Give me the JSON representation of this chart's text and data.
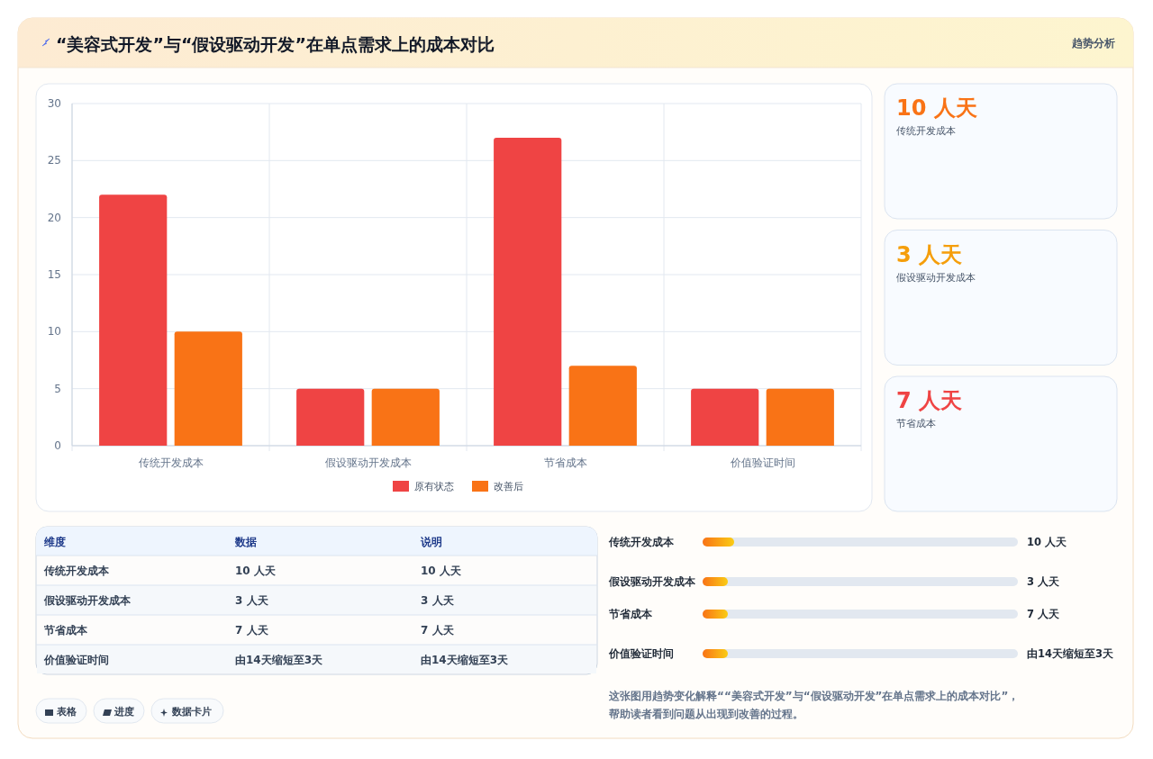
{
  "chart_data": [
    {
      "type": "bar",
      "title": "“美容式开发”与“假设驱动开发”在单点需求上的成本对比",
      "categories": [
        "传统开发成本",
        "假设驱动开发成本",
        "节省成本",
        "价值验证时间"
      ],
      "series": [
        {
          "name": "原有状态",
          "color": "#ef4444",
          "values": [
            22,
            5,
            27,
            5
          ]
        },
        {
          "name": "改善后",
          "color": "#f97316",
          "values": [
            10,
            5,
            7,
            5
          ]
        }
      ],
      "ylim": [
        0,
        30
      ],
      "yticks": [
        0,
        5,
        10,
        15,
        20,
        25,
        30
      ],
      "grid": true,
      "legend": "bottom",
      "annotations": [
        "趋势分析",
        "这张图用趋势变化解释““美容式开发”与“假设驱动开发”在单点需求上的成本对比”，帮助读者看到问题从出现到改善的过程。",
        "表格",
        "进度",
        "数据卡片"
      ]
    },
    {
      "type": "other",
      "categories": [
        "传统开发成本",
        "假设驱动开发成本",
        "节省成本"
      ],
      "value_labels": [
        "10 人天",
        "3 人天",
        "7 人天"
      ]
    },
    {
      "type": "other",
      "categories": [
        "维度",
        "数据",
        "说明"
      ],
      "y_categories": [
        "传统开发成本",
        "假设驱动开发成本",
        "节省成本",
        "价值验证时间"
      ],
      "cell_labels": [
        [
          "10 人天",
          "10 人天"
        ],
        [
          "3 人天",
          "3 人天"
        ],
        [
          "7 人天",
          "7 人天"
        ],
        [
          "由14天缩短至3天",
          "由14天缩短至3天"
        ]
      ]
    },
    {
      "type": "other",
      "categories": [
        "传统开发成本",
        "假设驱动开发成本",
        "节省成本",
        "价值验证时间"
      ],
      "value_labels": [
        "10 人天",
        "3 人天",
        "7 人天",
        "由14天缩短至3天"
      ]
    }
  ]
}
